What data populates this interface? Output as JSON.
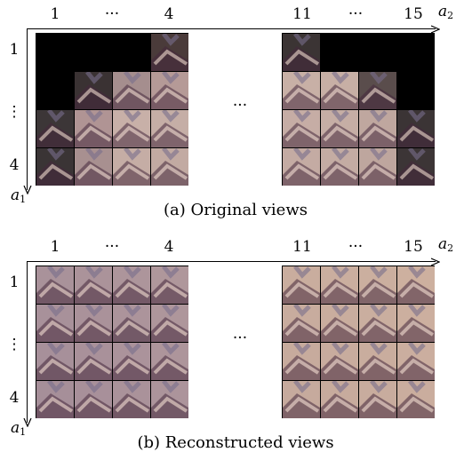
{
  "panels": [
    {
      "id": "a",
      "caption": "(a) Original views",
      "column_labels": {
        "first": "1",
        "dots": "···",
        "fourth": "4",
        "eleventh": "11",
        "dots2": "···",
        "last": "15"
      },
      "row_labels": {
        "first": "1",
        "dots": "⋮",
        "last": "4"
      },
      "axis_h": {
        "letter": "a",
        "sub": "2"
      },
      "axis_v": {
        "letter": "a",
        "sub": "1"
      },
      "middle_dots": "···",
      "left_grid": [
        [
          "#000000",
          "#000000",
          "#000000",
          "#4a3b3a"
        ],
        [
          "#000000",
          "#3a3233",
          "#a58e8e",
          "#b59a97"
        ],
        [
          "#3c3637",
          "#b09494",
          "#c8b0a8",
          "#c5aea6"
        ],
        [
          "#3a3435",
          "#a89090",
          "#c5ada5",
          "#c2aaa2"
        ]
      ],
      "right_grid": [
        [
          "#3b3434",
          "#000000",
          "#000000",
          "#000000"
        ],
        [
          "#c8b0a6",
          "#c7afa5",
          "#5a4d4c",
          "#000000"
        ],
        [
          "#c6ada5",
          "#c6aea5",
          "#bfa79f",
          "#3b3435"
        ],
        [
          "#c4aba3",
          "#c4aca3",
          "#bea69e",
          "#3c3536"
        ]
      ]
    },
    {
      "id": "b",
      "caption": "(b) Reconstructed views",
      "column_labels": {
        "first": "1",
        "dots": "···",
        "fourth": "4",
        "eleventh": "11",
        "dots2": "···",
        "last": "15"
      },
      "row_labels": {
        "first": "1",
        "dots": "⋮",
        "last": "4"
      },
      "axis_h": {
        "letter": "a",
        "sub": "2"
      },
      "axis_v": {
        "letter": "a",
        "sub": "1"
      },
      "middle_dots": "···",
      "left_grid": [
        [
          "#a9929a",
          "#ab939a",
          "#ad959b",
          "#af979b"
        ],
        [
          "#a8919a",
          "#aa929a",
          "#ac949b",
          "#ae969b"
        ],
        [
          "#a7909a",
          "#a9919a",
          "#ab939b",
          "#ad959b"
        ],
        [
          "#a68f99",
          "#a8909a",
          "#aa929a",
          "#ac949b"
        ]
      ],
      "right_grid": [
        [
          "#c9ad9e",
          "#caae9f",
          "#cbaf9f",
          "#cdb09f"
        ],
        [
          "#c8ac9e",
          "#c9ad9e",
          "#caae9f",
          "#ccaf9f"
        ],
        [
          "#c7ab9d",
          "#c8ac9e",
          "#c9ad9e",
          "#cbae9f"
        ],
        [
          "#c6aa9d",
          "#c7ab9d",
          "#c8ac9e",
          "#caad9e"
        ]
      ]
    }
  ]
}
